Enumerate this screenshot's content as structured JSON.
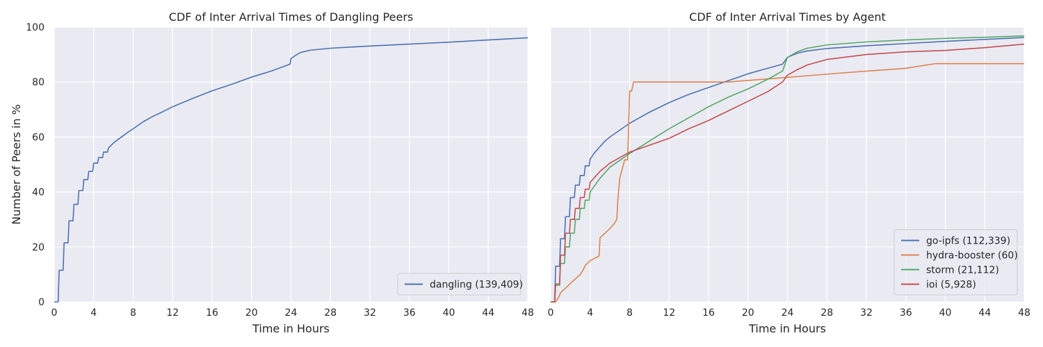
{
  "chart_data": [
    {
      "type": "line",
      "title": "CDF of Inter Arrival Times of Dangling Peers",
      "xlabel": "Time in Hours",
      "ylabel": "Number of Peers in %",
      "xlim": [
        0,
        48
      ],
      "ylim": [
        0,
        100
      ],
      "xticks": [
        0,
        4,
        8,
        12,
        16,
        20,
        24,
        28,
        32,
        36,
        40,
        44,
        48
      ],
      "yticks": [
        0,
        20,
        40,
        60,
        80,
        100
      ],
      "grid": true,
      "legend_position": "lower-right",
      "series": [
        {
          "name": "dangling (139,409)",
          "color": "#4c72b0",
          "x": [
            0,
            0.4,
            0.5,
            0.9,
            1.0,
            1.4,
            1.5,
            1.9,
            2.0,
            2.4,
            2.5,
            2.9,
            3.0,
            3.4,
            3.5,
            3.9,
            4.0,
            4.4,
            4.5,
            4.9,
            5.0,
            5.4,
            5.5,
            6.0,
            6.5,
            7.0,
            7.5,
            8.0,
            9.0,
            10.0,
            11.0,
            12.0,
            14.0,
            16.0,
            18.0,
            20.0,
            22.0,
            23.5,
            23.9,
            24.0,
            24.5,
            25.0,
            26.0,
            28.0,
            32.0,
            36.0,
            40.0,
            44.0,
            48.0
          ],
          "y": [
            0,
            0,
            11.5,
            11.5,
            21.5,
            21.5,
            29.5,
            29.5,
            35.5,
            35.5,
            40.5,
            40.5,
            44.5,
            44.5,
            47.5,
            47.5,
            50.5,
            50.5,
            52.5,
            52.5,
            54.5,
            54.5,
            56.0,
            57.8,
            59.2,
            60.5,
            61.8,
            63.0,
            65.5,
            67.5,
            69.2,
            71.0,
            74.0,
            76.8,
            79.2,
            81.8,
            84.0,
            86.0,
            86.5,
            88.5,
            89.8,
            90.8,
            91.6,
            92.3,
            93.1,
            93.8,
            94.5,
            95.3,
            96.1
          ]
        }
      ]
    },
    {
      "type": "line",
      "title": "CDF of Inter Arrival Times by Agent",
      "xlabel": "Time in Hours",
      "ylabel": "",
      "xlim": [
        0,
        48
      ],
      "ylim": [
        0,
        100
      ],
      "xticks": [
        0,
        4,
        8,
        12,
        16,
        20,
        24,
        28,
        32,
        36,
        40,
        44,
        48
      ],
      "grid": true,
      "legend_position": "lower-right",
      "series": [
        {
          "name": "go-ipfs (112,339)",
          "color": "#4c72b0",
          "x": [
            0,
            0.4,
            0.5,
            0.9,
            1.0,
            1.4,
            1.5,
            1.9,
            2.0,
            2.4,
            2.5,
            2.9,
            3.0,
            3.4,
            3.5,
            3.9,
            4.0,
            4.5,
            5.0,
            5.5,
            6.0,
            7.0,
            8.0,
            9.0,
            10.0,
            12.0,
            14.0,
            16.0,
            18.0,
            20.0,
            22.0,
            23.5,
            24.0,
            25.0,
            26.0,
            28.0,
            32.0,
            36.0,
            40.0,
            44.0,
            48.0
          ],
          "y": [
            0,
            0,
            13,
            13,
            23,
            23,
            31,
            31,
            38,
            38,
            42.5,
            42.5,
            46,
            46,
            49.5,
            49.5,
            52,
            54.5,
            56.5,
            58.5,
            60,
            62.5,
            65,
            67,
            69,
            72.5,
            75.5,
            78,
            80.5,
            83,
            85,
            86.5,
            89,
            90.5,
            91.3,
            92.2,
            93.2,
            94,
            94.8,
            95.5,
            96.2
          ]
        },
        {
          "name": "hydra-booster (60)",
          "color": "#dd8452",
          "x": [
            0,
            0.5,
            0.8,
            1.0,
            2.0,
            3.0,
            3.3,
            3.5,
            4.0,
            4.9,
            5.0,
            6.0,
            6.4,
            6.7,
            6.8,
            7.0,
            7.5,
            7.8,
            8.0,
            8.2,
            8.4,
            18.0,
            24.0,
            29.5,
            36.0,
            39.0,
            48.0
          ],
          "y": [
            0,
            0,
            1.7,
            3.3,
            6.7,
            10.0,
            11.7,
            13.3,
            15.0,
            16.7,
            23.3,
            26.7,
            28.3,
            30.0,
            36.7,
            45.0,
            51.7,
            51.7,
            76.7,
            76.7,
            80.0,
            80.0,
            81.7,
            83.3,
            85.0,
            86.7,
            86.7
          ]
        },
        {
          "name": "storm (21,112)",
          "color": "#55a868",
          "x": [
            0,
            0.4,
            0.5,
            0.9,
            1.0,
            1.4,
            1.5,
            1.9,
            2.0,
            2.4,
            2.5,
            2.9,
            3.0,
            3.4,
            3.5,
            3.9,
            4.0,
            4.5,
            5.0,
            5.5,
            6.0,
            7.0,
            8.0,
            10.0,
            12.0,
            14.0,
            16.0,
            18.0,
            20.0,
            22.0,
            23.5,
            24.0,
            25.0,
            26.0,
            28.0,
            32.0,
            36.0,
            40.0,
            44.0,
            48.0
          ],
          "y": [
            0,
            0,
            6,
            6,
            14,
            14,
            20,
            20,
            25,
            25,
            30,
            30,
            34,
            34,
            37,
            37,
            40,
            42.5,
            45,
            47,
            49,
            51.5,
            54,
            58.5,
            63,
            67,
            71,
            74.5,
            77.5,
            81,
            84,
            89,
            91,
            92.3,
            93.5,
            94.6,
            95.3,
            95.9,
            96.3,
            96.8
          ]
        },
        {
          "name": "ioi (5,928)",
          "color": "#c44e52",
          "x": [
            0,
            0.4,
            0.5,
            0.9,
            1.0,
            1.4,
            1.5,
            1.9,
            2.0,
            2.4,
            2.5,
            2.9,
            3.0,
            3.4,
            3.5,
            3.9,
            4.0,
            4.5,
            5.0,
            5.5,
            6.0,
            7.0,
            8.0,
            10.0,
            12.0,
            14.0,
            16.0,
            18.0,
            20.0,
            22.0,
            23.5,
            24.0,
            25.0,
            26.0,
            28.0,
            32.0,
            36.0,
            40.0,
            44.0,
            48.0
          ],
          "y": [
            0,
            0,
            6.5,
            6.5,
            17,
            17,
            25,
            25,
            30,
            30,
            34,
            34,
            38,
            38,
            41,
            41,
            43.5,
            45.5,
            47.5,
            49,
            50.5,
            52.5,
            54.5,
            57,
            59.5,
            63,
            66,
            69.5,
            73,
            76.5,
            80,
            82.5,
            84.5,
            86.2,
            88.2,
            90,
            91,
            91.5,
            92.5,
            93.8
          ]
        }
      ]
    }
  ]
}
